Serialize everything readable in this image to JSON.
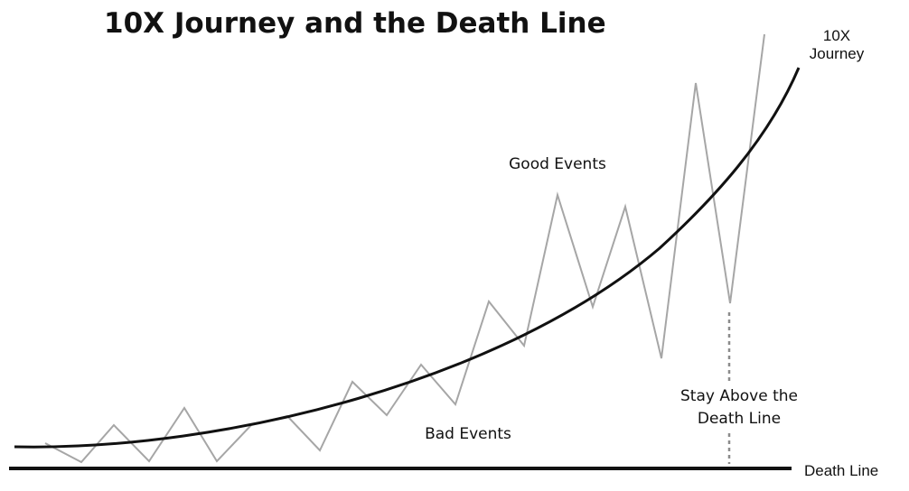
{
  "title": "10X Journey and the Death Line",
  "labels": {
    "journey_line1": "10X",
    "journey_line2": "Journey",
    "good_events": "Good Events",
    "bad_events": "Bad Events",
    "stay_above_line1": "Stay Above the",
    "stay_above_line2": "Death Line",
    "death_line": "Death Line"
  },
  "colors": {
    "curve": "#111111",
    "events": "#a6a6a6",
    "death_line": "#111111",
    "dashed_marker": "#8c8c8c"
  }
}
